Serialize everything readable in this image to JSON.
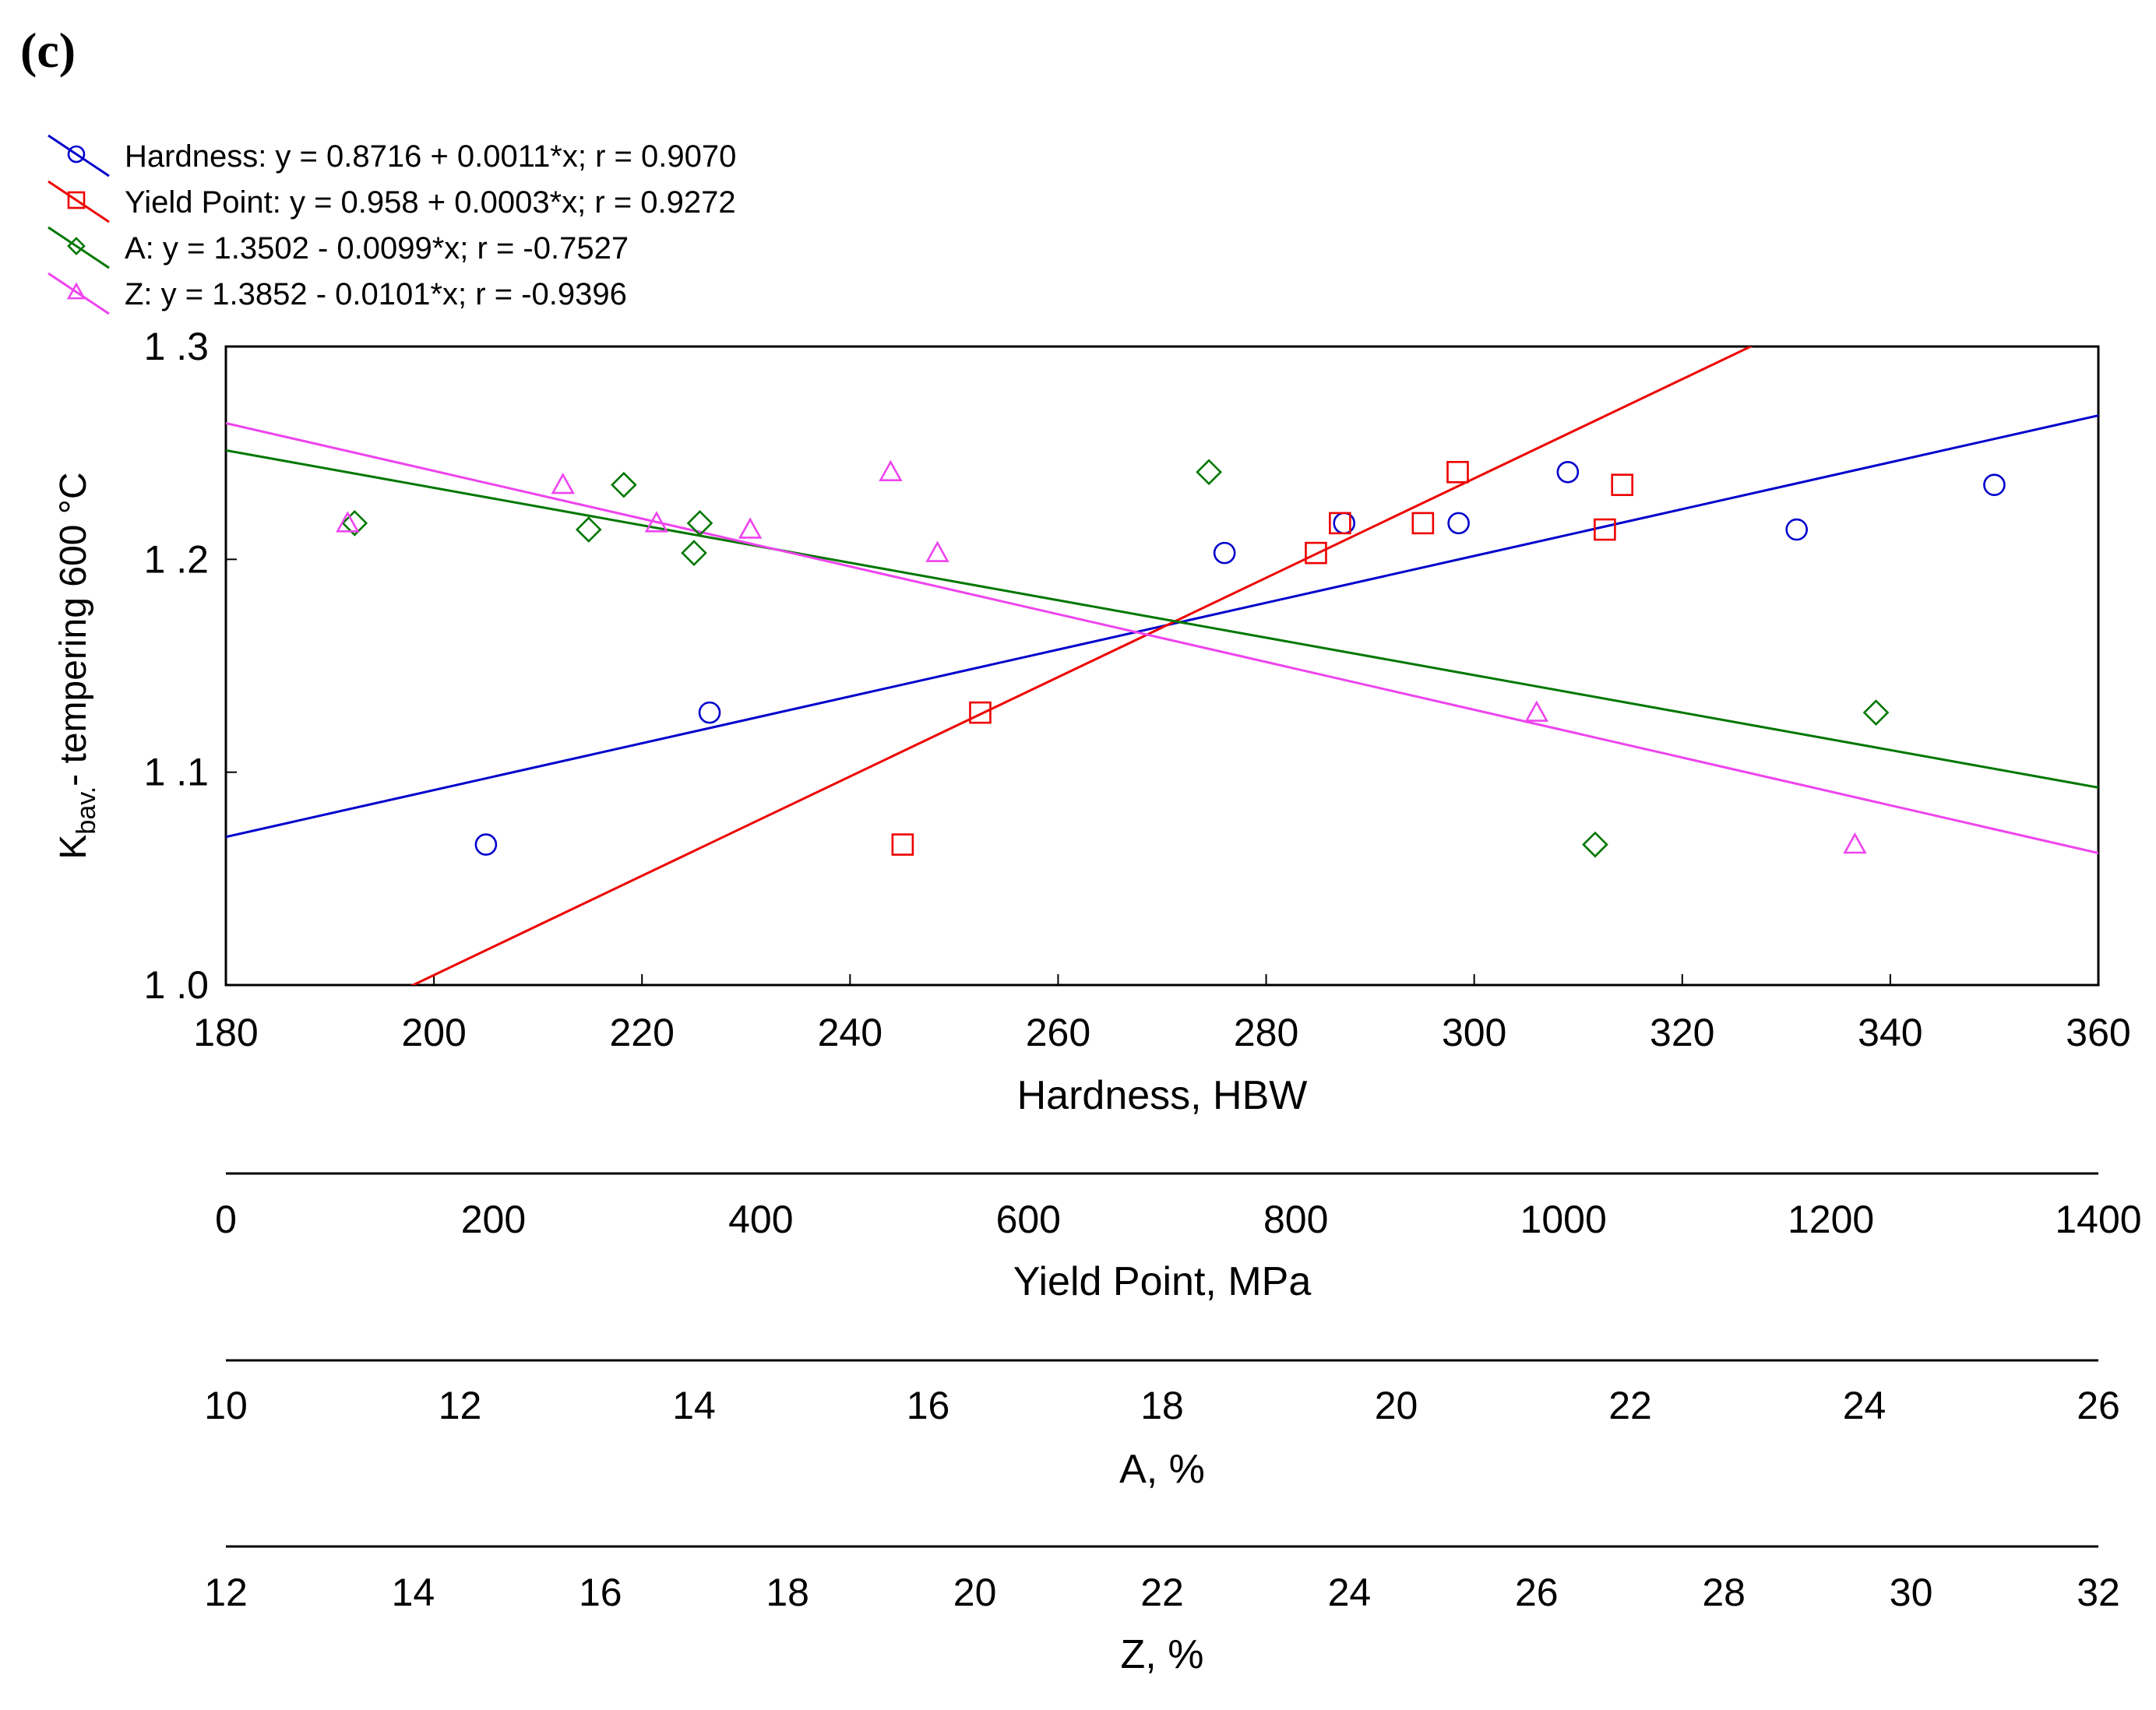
{
  "chart_data": {
    "type": "scatter",
    "panel_label": "(c)",
    "ylabel_main": "K",
    "ylabel_sub": "bav.",
    "ylabel_rest": "- tempering 600 °C",
    "ylim": [
      1.0,
      1.3
    ],
    "yticks": [
      1.0,
      1.1,
      1.2,
      1.3
    ],
    "ytick_labels": [
      "1 .0",
      "1 .1",
      "1 .2",
      "1 .3"
    ],
    "grid": false,
    "legend_position": "top-left above plot",
    "axes": [
      {
        "key": "hardness",
        "label": "Hardness, HBW",
        "range": [
          180,
          360
        ],
        "ticks": [
          180,
          200,
          220,
          240,
          260,
          280,
          300,
          320,
          340,
          360
        ]
      },
      {
        "key": "yield",
        "label": "Yield Point, MPa",
        "range": [
          0,
          1400
        ],
        "ticks": [
          0,
          200,
          400,
          600,
          800,
          1000,
          1200,
          1400
        ]
      },
      {
        "key": "a",
        "label": "A, %",
        "range": [
          10,
          26
        ],
        "ticks": [
          10,
          12,
          14,
          16,
          18,
          20,
          22,
          24,
          26
        ]
      },
      {
        "key": "z",
        "label": "Z, %",
        "range": [
          12,
          32
        ],
        "ticks": [
          12,
          14,
          16,
          18,
          20,
          22,
          24,
          26,
          28,
          30,
          32
        ]
      }
    ],
    "series": [
      {
        "name": "Hardness",
        "legend": "Hardness:  y = 0.8716 + 0.0011*x; r = 0.9070",
        "axis": "hardness",
        "color": "#0000cc",
        "marker": "circle",
        "fit": {
          "intercept": 0.8716,
          "slope": 0.0011
        },
        "points": [
          [
            205,
            1.066
          ],
          [
            226.5,
            1.128
          ],
          [
            276,
            1.203
          ],
          [
            287.5,
            1.217
          ],
          [
            298.5,
            1.217
          ],
          [
            309,
            1.241
          ],
          [
            331,
            1.214
          ],
          [
            350,
            1.235
          ]
        ]
      },
      {
        "name": "Yield Point",
        "legend": "Yield Point:  y = 0.958 + 0.0003*x; r = 0.9272",
        "axis": "yield",
        "color": "#ee0000",
        "marker": "square",
        "fit": {
          "intercept": 0.958,
          "slope": 0.0003
        },
        "points": [
          [
            506,
            1.066
          ],
          [
            564,
            1.128
          ],
          [
            815,
            1.203
          ],
          [
            833,
            1.217
          ],
          [
            895,
            1.217
          ],
          [
            921,
            1.241
          ],
          [
            1031,
            1.214
          ],
          [
            1044,
            1.235
          ]
        ]
      },
      {
        "name": "A",
        "legend": "A: y = 1.3502 - 0.0099*x; r = -0.7527",
        "axis": "a",
        "color": "#007700",
        "marker": "diamond",
        "fit": {
          "intercept": 1.3502,
          "slope": -0.0099
        },
        "points": [
          [
            11.1,
            1.217
          ],
          [
            13.1,
            1.214
          ],
          [
            13.4,
            1.235
          ],
          [
            14.0,
            1.203
          ],
          [
            14.05,
            1.217
          ],
          [
            18.4,
            1.241
          ],
          [
            21.7,
            1.066
          ],
          [
            24.1,
            1.128
          ]
        ]
      },
      {
        "name": "Z",
        "legend": "Z: y = 1.3852 - 0.0101*x; r = -0.9396",
        "axis": "z",
        "color": "#ee44ee",
        "marker": "triangle",
        "fit": {
          "intercept": 1.3852,
          "slope": -0.0101
        },
        "points": [
          [
            13.3,
            1.217
          ],
          [
            15.6,
            1.235
          ],
          [
            16.6,
            1.217
          ],
          [
            17.6,
            1.214
          ],
          [
            19.1,
            1.241
          ],
          [
            19.6,
            1.203
          ],
          [
            26.0,
            1.128
          ],
          [
            29.4,
            1.066
          ]
        ]
      }
    ]
  }
}
